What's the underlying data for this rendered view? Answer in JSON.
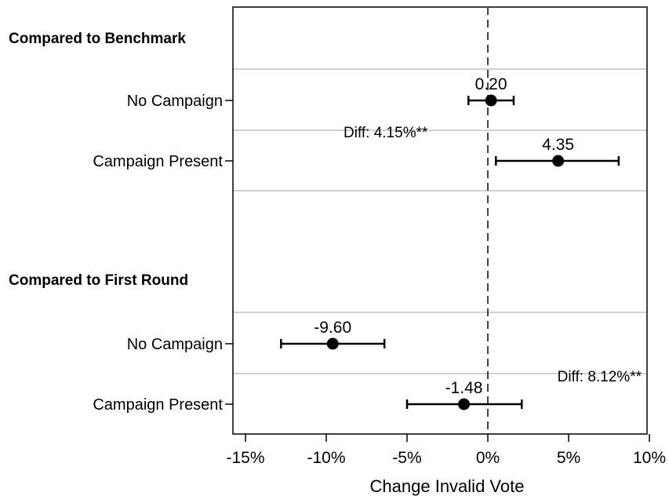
{
  "chart_data": {
    "type": "coefficient-plot",
    "xlabel": "Change Invalid Vote",
    "xlim": [
      -15,
      10
    ],
    "xticks": [
      {
        "value": -15,
        "label": "-15%"
      },
      {
        "value": -10,
        "label": "-10%"
      },
      {
        "value": -5,
        "label": "-5%"
      },
      {
        "value": 0,
        "label": "0%"
      },
      {
        "value": 5,
        "label": "5%"
      },
      {
        "value": 10,
        "label": "10%"
      }
    ],
    "reference_line": 0,
    "groups": [
      {
        "title": "Compared to Benchmark",
        "diff_label": "Diff: 4.15%**",
        "rows": [
          {
            "label": "No Campaign",
            "estimate": 0.2,
            "value_label": "0.20",
            "ci": [
              -1.2,
              1.6
            ]
          },
          {
            "label": "Campaign Present",
            "estimate": 4.35,
            "value_label": "4.35",
            "ci": [
              0.5,
              8.1
            ]
          }
        ]
      },
      {
        "title": "Compared to First Round",
        "diff_label": "Diff: 8.12%**",
        "rows": [
          {
            "label": "No Campaign",
            "estimate": -9.6,
            "value_label": "-9.60",
            "ci": [
              -12.8,
              -6.4
            ]
          },
          {
            "label": "Campaign Present",
            "estimate": -1.48,
            "value_label": "-1.48",
            "ci": [
              -5.0,
              2.1
            ]
          }
        ]
      }
    ]
  }
}
